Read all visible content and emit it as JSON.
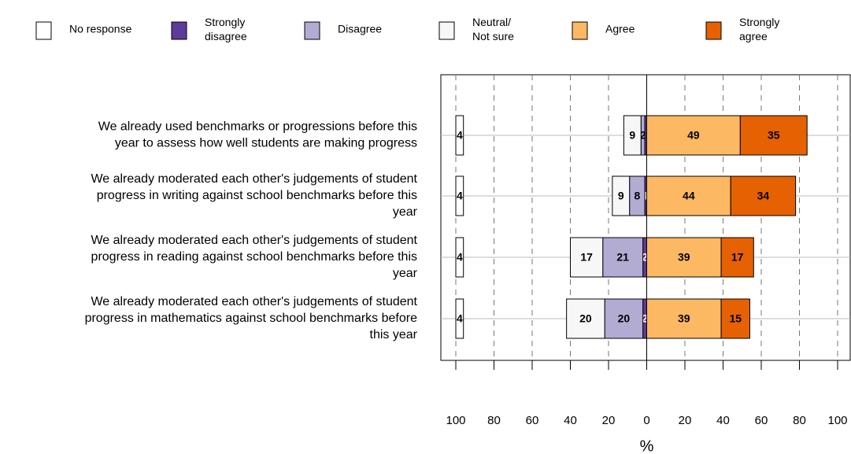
{
  "chart_data": {
    "type": "diverging_bar",
    "xlabel": "%",
    "categories": [
      "We already used benchmarks or progressions before this\nyear to assess how well students are making progress",
      "We already moderated each other's judgements of student\nprogress in writing against school benchmarks before this\nyear",
      "We already moderated each other's judgements of student\nprogress in reading against school benchmarks before this\nyear",
      "We already moderated each other's judgements of student\nprogress in mathematics against school benchmarks before\nthis year"
    ],
    "series": [
      {
        "name": "No response",
        "color": "#ffffff",
        "side": "margin",
        "values": [
          4,
          4,
          4,
          4
        ]
      },
      {
        "name": "Strongly\ndisagree",
        "color": "#5e3c99",
        "side": "left",
        "values": [
          1,
          1,
          2,
          2
        ],
        "value_labels": [
          null,
          "1",
          "2",
          "2"
        ]
      },
      {
        "name": "Disagree",
        "color": "#b2abd2",
        "side": "left",
        "values": [
          2,
          8,
          21,
          20
        ]
      },
      {
        "name": "Neutral/\nNot sure",
        "color": "#f7f7f7",
        "side": "left",
        "values": [
          9,
          9,
          17,
          20
        ]
      },
      {
        "name": "Agree",
        "color": "#fdb863",
        "side": "right",
        "values": [
          49,
          44,
          39,
          39
        ]
      },
      {
        "name": "Strongly\nagree",
        "color": "#e66101",
        "side": "right",
        "values": [
          35,
          34,
          17,
          15
        ]
      }
    ],
    "xlim": [
      -100,
      100
    ],
    "xticks": [
      {
        "value": -100,
        "label": "100"
      },
      {
        "value": -80,
        "label": "80"
      },
      {
        "value": -60,
        "label": "60"
      },
      {
        "value": -40,
        "label": "40"
      },
      {
        "value": -20,
        "label": "20"
      },
      0,
      20,
      40,
      60,
      80,
      100
    ],
    "grid": true
  }
}
